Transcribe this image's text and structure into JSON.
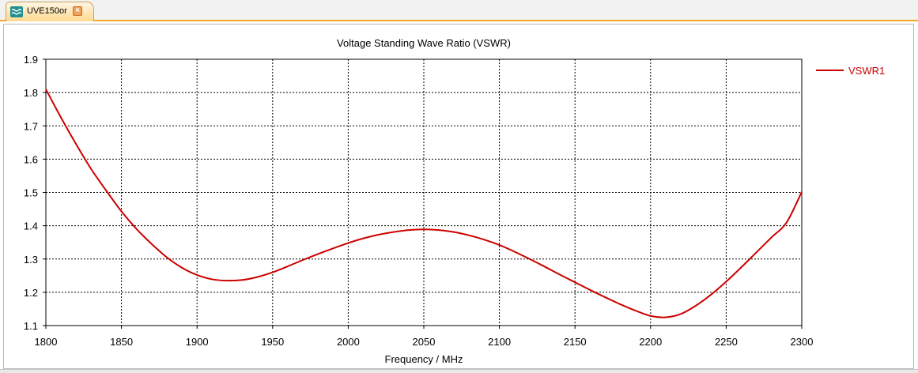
{
  "tab": {
    "label": "UVE150or",
    "close_glyph": "×",
    "icon": "wave-icon",
    "close_icon": "close-icon"
  },
  "colors": {
    "series": "#cc0000",
    "grid": "#000000",
    "tab_accent": "#f5a623"
  },
  "chart_data": {
    "type": "line",
    "title": "Voltage Standing Wave Ratio (VSWR)",
    "xlabel": "Frequency / MHz",
    "ylabel": "",
    "xlim": [
      1800,
      2300
    ],
    "ylim": [
      1.1,
      1.9
    ],
    "xticks": [
      1800,
      1850,
      1900,
      1950,
      2000,
      2050,
      2100,
      2150,
      2200,
      2250,
      2300
    ],
    "yticks": [
      1.1,
      1.2,
      1.3,
      1.4,
      1.5,
      1.6,
      1.7,
      1.8,
      1.9
    ],
    "ytick_labels": [
      "1.1",
      "1.2",
      "1.3",
      "1.4",
      "1.5",
      "1.6",
      "1.7",
      "1.8",
      "1.9"
    ],
    "grid": true,
    "legend_position": "right",
    "series": [
      {
        "name": "VSWR1",
        "x": [
          1800,
          1810,
          1820,
          1830,
          1840,
          1850,
          1860,
          1870,
          1880,
          1890,
          1900,
          1910,
          1920,
          1930,
          1940,
          1950,
          1960,
          1970,
          1980,
          1990,
          2000,
          2010,
          2020,
          2030,
          2040,
          2050,
          2060,
          2070,
          2080,
          2090,
          2100,
          2110,
          2120,
          2130,
          2140,
          2150,
          2160,
          2170,
          2180,
          2190,
          2200,
          2210,
          2220,
          2230,
          2240,
          2250,
          2260,
          2270,
          2280,
          2290,
          2300
        ],
        "values": [
          1.81,
          1.725,
          1.645,
          1.57,
          1.505,
          1.443,
          1.39,
          1.345,
          1.305,
          1.274,
          1.252,
          1.239,
          1.235,
          1.237,
          1.246,
          1.26,
          1.278,
          1.297,
          1.315,
          1.332,
          1.348,
          1.362,
          1.373,
          1.381,
          1.387,
          1.389,
          1.387,
          1.381,
          1.371,
          1.358,
          1.342,
          1.322,
          1.3,
          1.277,
          1.253,
          1.23,
          1.207,
          1.185,
          1.164,
          1.145,
          1.129,
          1.125,
          1.135,
          1.16,
          1.193,
          1.232,
          1.275,
          1.32,
          1.365,
          1.41,
          1.502
        ]
      }
    ]
  }
}
